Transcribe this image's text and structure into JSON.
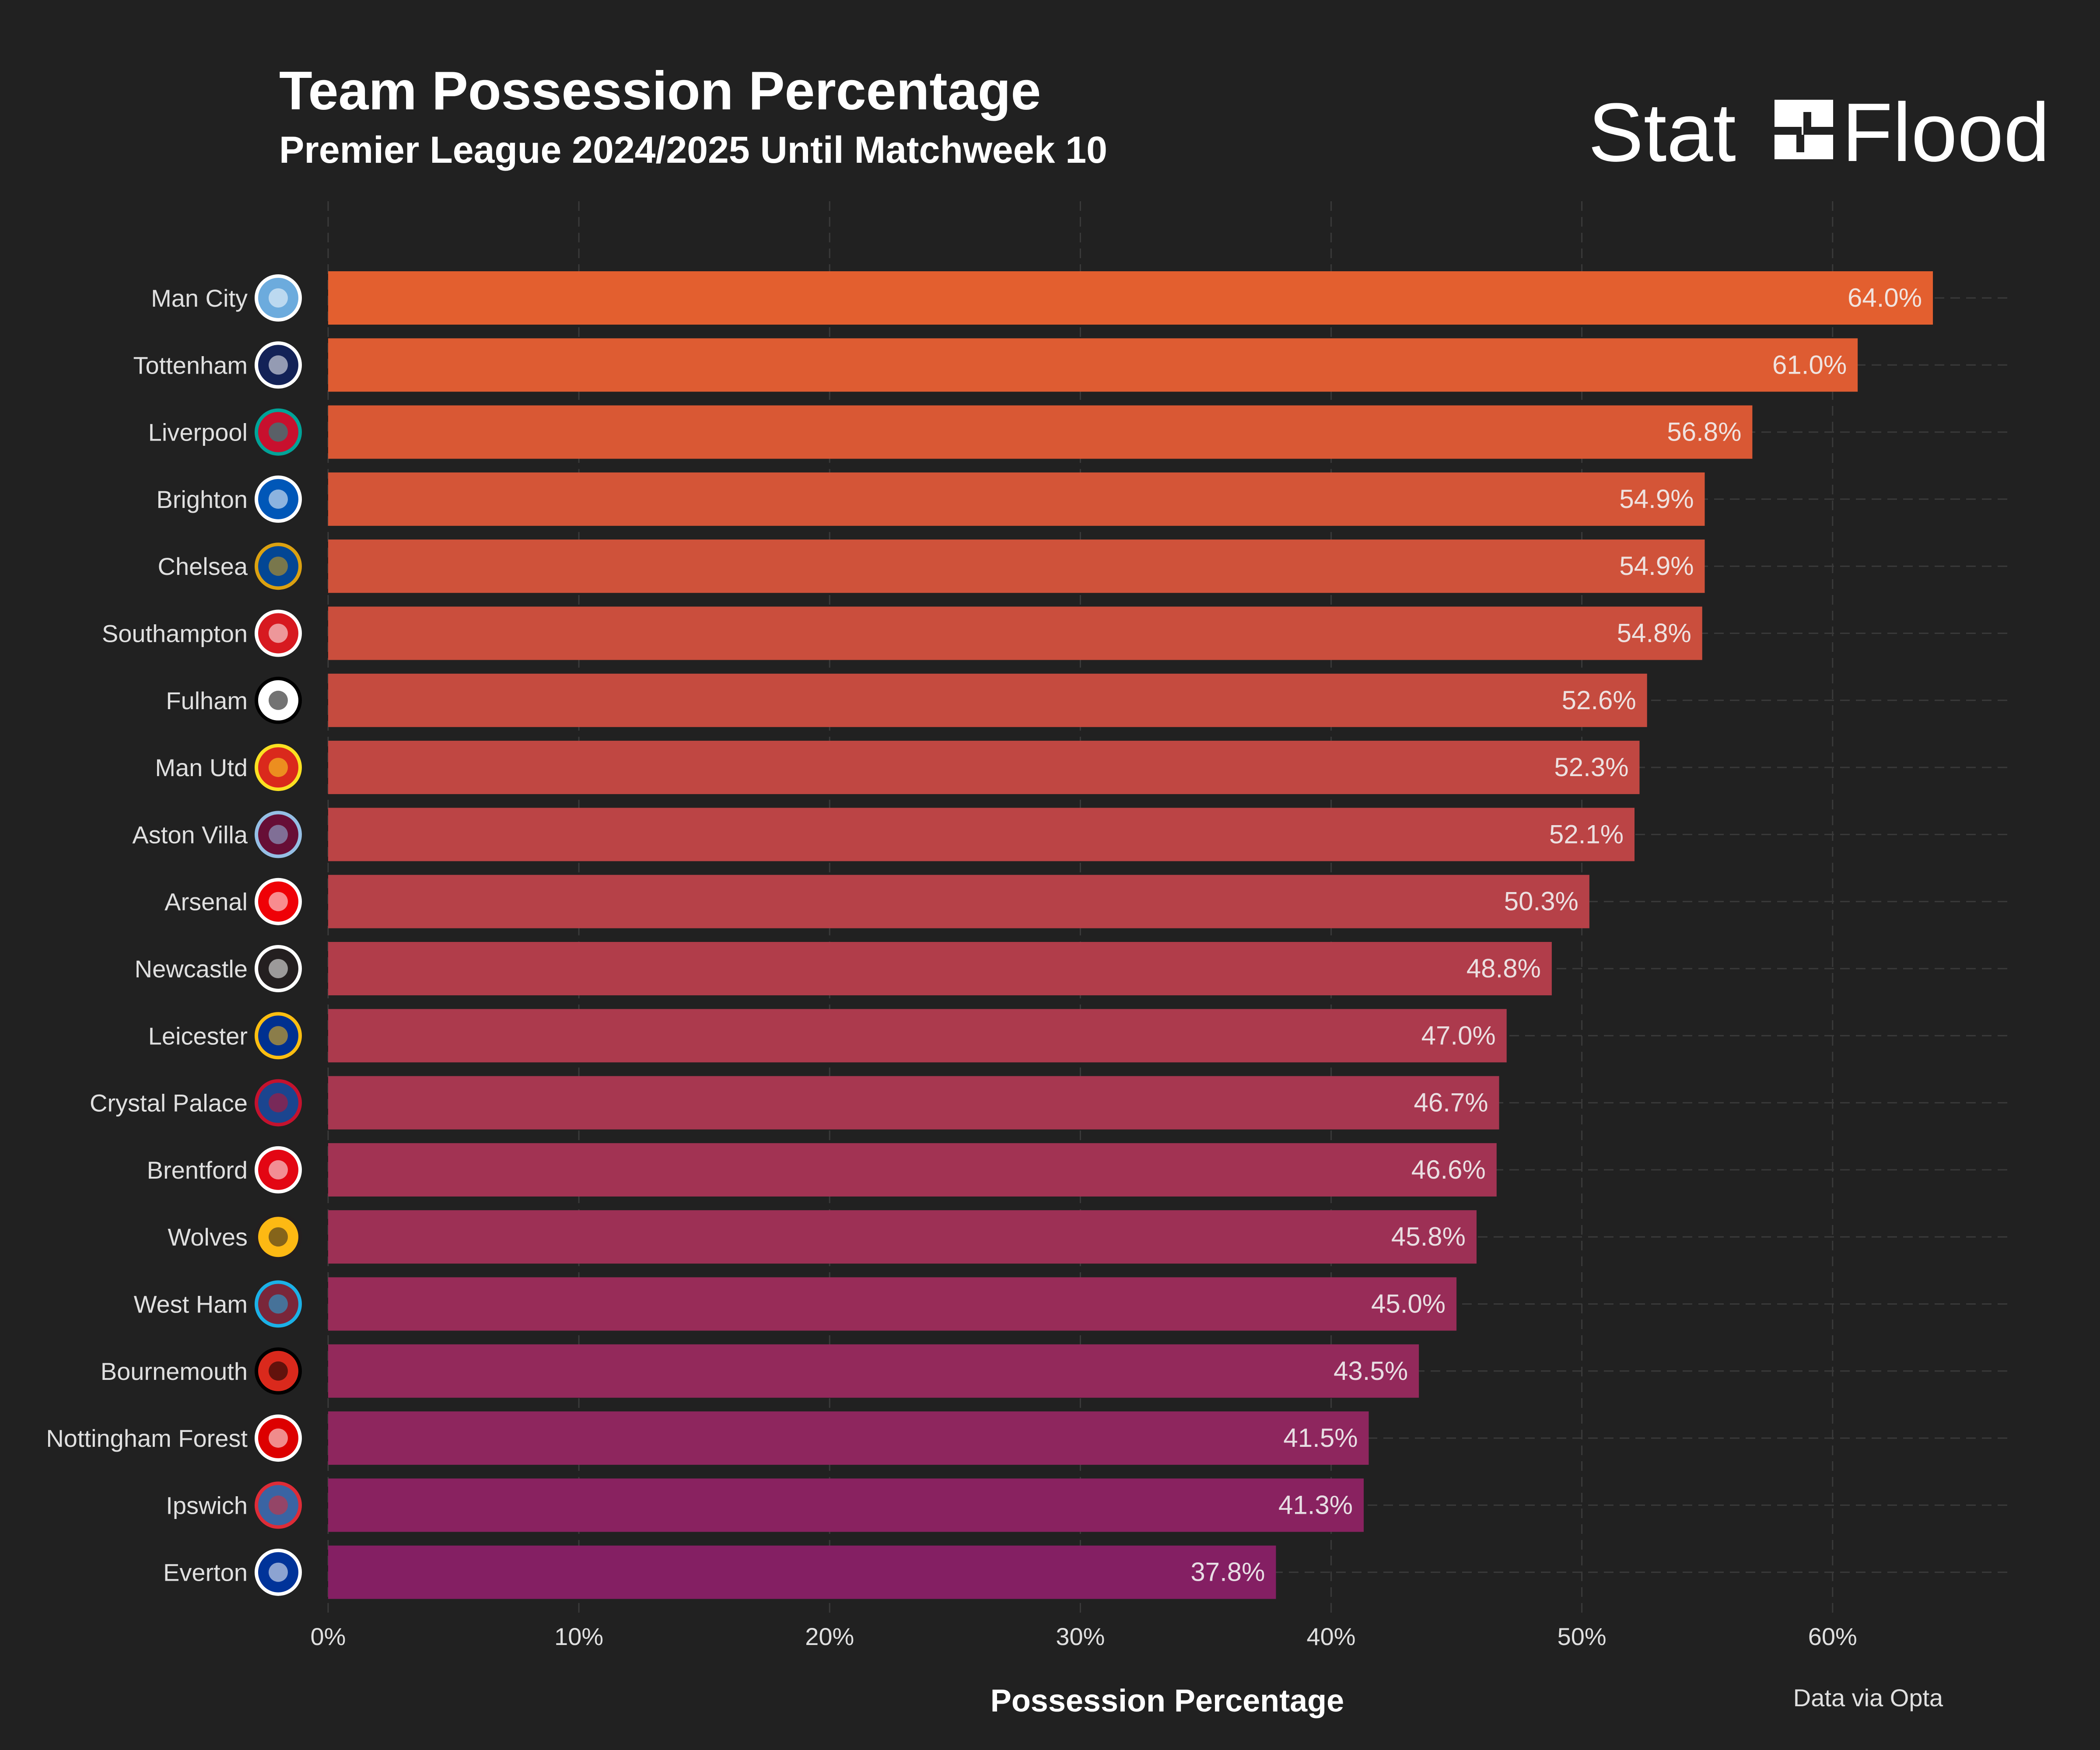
{
  "header": {
    "title": "Team Possession Percentage",
    "subtitle": "Premier League 2024/2025 Until Matchweek 10"
  },
  "brand": {
    "left": "Stat",
    "right": "Flood"
  },
  "footer": {
    "source": "Data via Opta"
  },
  "colors": {
    "background": "#212121",
    "text": "#ffffff",
    "tick_text": "#e0e0e0",
    "grid": "#3a3a3a",
    "bar_top": "#e35f2f",
    "bar_bottom": "#841f63"
  },
  "chart_data": {
    "type": "bar",
    "orientation": "horizontal",
    "xlabel": "Possession Percentage",
    "ylabel": "",
    "xlim": [
      0,
      67
    ],
    "xticks": [
      0,
      10,
      20,
      30,
      40,
      50,
      60
    ],
    "xtick_labels": [
      "0%",
      "10%",
      "20%",
      "30%",
      "40%",
      "50%",
      "60%"
    ],
    "grid": true,
    "categories": [
      "Man City",
      "Tottenham",
      "Liverpool",
      "Brighton",
      "Chelsea",
      "Southampton",
      "Fulham",
      "Man Utd",
      "Aston Villa",
      "Arsenal",
      "Newcastle",
      "Leicester",
      "Crystal Palace",
      "Brentford",
      "Wolves",
      "West Ham",
      "Bournemouth",
      "Nottingham Forest",
      "Ipswich",
      "Everton"
    ],
    "values": [
      64.0,
      61.0,
      56.8,
      54.9,
      54.9,
      54.8,
      52.6,
      52.3,
      52.1,
      50.3,
      48.8,
      47.0,
      46.7,
      46.6,
      45.8,
      45.0,
      43.5,
      41.5,
      41.3,
      37.8
    ],
    "value_labels": [
      "64.0%",
      "61.0%",
      "56.8%",
      "54.9%",
      "54.9%",
      "54.8%",
      "52.6%",
      "52.3%",
      "52.1%",
      "50.3%",
      "48.8%",
      "47.0%",
      "46.7%",
      "46.6%",
      "45.8%",
      "45.0%",
      "43.5%",
      "41.5%",
      "41.3%",
      "37.8%"
    ],
    "team_badges": [
      {
        "icon": "man-city-badge-icon",
        "fill": "#6cabdd",
        "stroke": "#ffffff"
      },
      {
        "icon": "tottenham-badge-icon",
        "fill": "#132257",
        "stroke": "#ffffff"
      },
      {
        "icon": "liverpool-badge-icon",
        "fill": "#c8102e",
        "stroke": "#00a398"
      },
      {
        "icon": "brighton-badge-icon",
        "fill": "#0057b8",
        "stroke": "#ffffff"
      },
      {
        "icon": "chelsea-badge-icon",
        "fill": "#034694",
        "stroke": "#dba111"
      },
      {
        "icon": "southampton-badge-icon",
        "fill": "#d71920",
        "stroke": "#ffffff"
      },
      {
        "icon": "fulham-badge-icon",
        "fill": "#ffffff",
        "stroke": "#000000"
      },
      {
        "icon": "man-utd-badge-icon",
        "fill": "#da291c",
        "stroke": "#fbe122"
      },
      {
        "icon": "aston-villa-badge-icon",
        "fill": "#670e36",
        "stroke": "#95bfe5"
      },
      {
        "icon": "arsenal-badge-icon",
        "fill": "#ef0107",
        "stroke": "#ffffff"
      },
      {
        "icon": "newcastle-badge-icon",
        "fill": "#241f20",
        "stroke": "#ffffff"
      },
      {
        "icon": "leicester-badge-icon",
        "fill": "#003090",
        "stroke": "#fdbe11"
      },
      {
        "icon": "crystal-palace-badge-icon",
        "fill": "#1b458f",
        "stroke": "#c4122e"
      },
      {
        "icon": "brentford-badge-icon",
        "fill": "#e30613",
        "stroke": "#ffffff"
      },
      {
        "icon": "wolves-badge-icon",
        "fill": "#fdb913",
        "stroke": "#231f20"
      },
      {
        "icon": "west-ham-badge-icon",
        "fill": "#7a263a",
        "stroke": "#1bb1e7"
      },
      {
        "icon": "bournemouth-badge-icon",
        "fill": "#da291c",
        "stroke": "#000000"
      },
      {
        "icon": "nottingham-forest-badge-icon",
        "fill": "#dd0000",
        "stroke": "#ffffff"
      },
      {
        "icon": "ipswich-badge-icon",
        "fill": "#3a64a3",
        "stroke": "#de2c37"
      },
      {
        "icon": "everton-badge-icon",
        "fill": "#003399",
        "stroke": "#ffffff"
      }
    ]
  }
}
